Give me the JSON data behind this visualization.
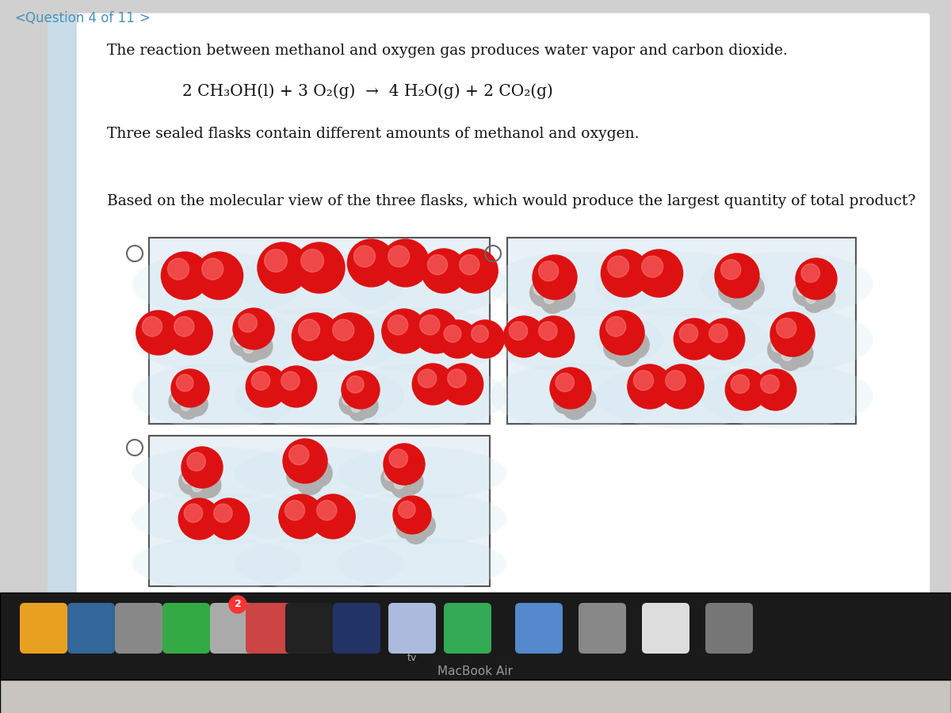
{
  "bg_outer": "#d0d0d0",
  "bg_card": "#f5f5f5",
  "nav_text": "Question 4 of 11",
  "nav_color": "#4a90b8",
  "line1": "The reaction between methanol and oxygen gas produces water vapor and carbon dioxide.",
  "equation": "2 CH₃OH(l) + 3 O₂(g)  →  4 H₂O(g) + 2 CO₂(g)",
  "line3": "Three sealed flasks contain different amounts of methanol and oxygen.",
  "question": "Based on the molecular view of the three flasks, which would produce the largest quantity of total product?",
  "flask_bg": "#e8f0f8",
  "flask_border": "#555555",
  "red_mol": "#dd1111",
  "gray_mol": "#b0b0b0",
  "dock_bg": "#222222",
  "dock_bar": "#3a3a3a",
  "macbook_silver": "#c0bdb8",
  "macbook_text": "#888888"
}
